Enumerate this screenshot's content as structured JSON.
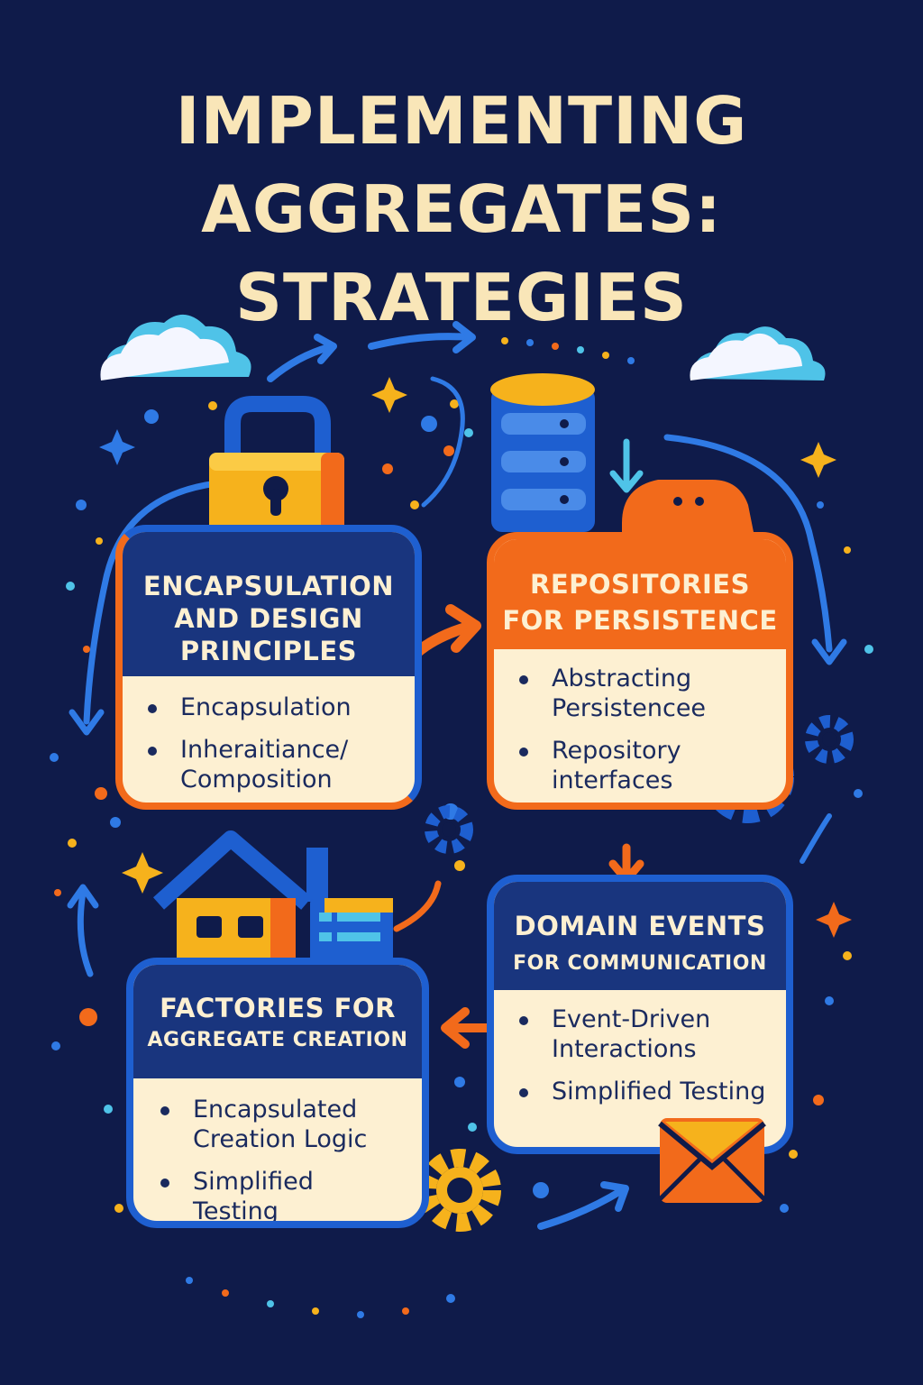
{
  "title": {
    "line1": "IMPLEMENTING",
    "line2": "AGGREGATES:",
    "line3": "STRATEGIES"
  },
  "sections": {
    "encapsulation": {
      "heading_line1": "ENCAPSULATION",
      "heading_line2": "AND DESIGN",
      "heading_line3": "PRINCIPLES",
      "items": [
        "Encapsulation",
        "Inheraitiance/ Composition"
      ]
    },
    "repositories": {
      "heading_line1": "REPOSITORIES",
      "heading_line2": "FOR PERSISTENCE",
      "items": [
        "Abstracting Persistencee",
        "Repository interfaces"
      ]
    },
    "factories": {
      "heading_line1": "FACTORIES FOR",
      "heading_line2": "AGGREGATE CREATION",
      "items": [
        "Encapsulated Creation Logic",
        "Simplified Testing"
      ]
    },
    "domain_events": {
      "heading_line1": "DOMAIN EVENTS",
      "heading_line2": "FOR COMMUNICATION",
      "items": [
        "Event-Driven Interactions",
        "Simplified Testing"
      ]
    }
  },
  "colors": {
    "background": "#0f1b4a",
    "title": "#f9e6b8",
    "navy_header": "#19357e",
    "orange": "#f26a1b",
    "blue": "#1e5fd0",
    "yellow": "#f6b21c",
    "cream": "#fdf0d2",
    "light_blue": "#4fc3e8"
  },
  "icons": [
    "cloud-icon",
    "padlock-icon",
    "database-icon",
    "chat-bubble-icon",
    "house-icon",
    "gear-icon",
    "envelope-icon",
    "sparkle-icon",
    "arrow-icon"
  ]
}
